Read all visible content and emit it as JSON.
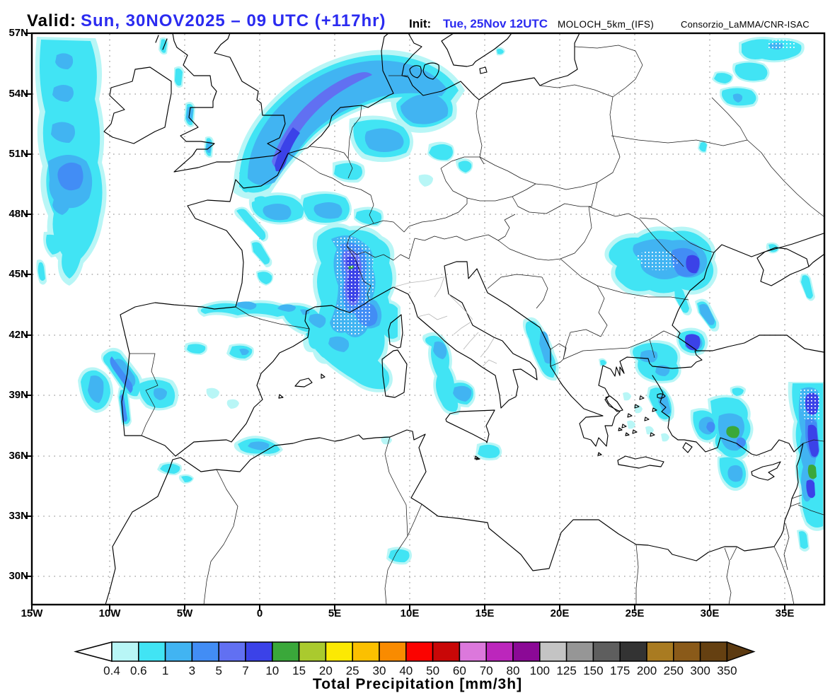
{
  "header": {
    "valid_label": "Valid:",
    "valid_value": "Sun, 30NOV2025 – 09 UTC (+117hr)",
    "init_label": "Init:",
    "init_value": "Tue, 25Nov 12UTC",
    "model": "MOLOCH_5km_(IFS)",
    "org": "Consorzio_LaMMA/CNR-ISAC",
    "accent_color": "#2b2bf0"
  },
  "map": {
    "lat_labels": [
      "57N",
      "54N",
      "51N",
      "48N",
      "45N",
      "42N",
      "39N",
      "36N",
      "33N",
      "30N"
    ],
    "lon_labels": [
      "15W",
      "10W",
      "5W",
      "0",
      "5E",
      "10E",
      "15E",
      "20E",
      "25E",
      "30E",
      "35E"
    ]
  },
  "colorbar": {
    "title": "Total Precipitation [mm/3h]",
    "boundary_labels": [
      "0.4",
      "0.6",
      "1",
      "3",
      "5",
      "7",
      "10",
      "15",
      "20",
      "25",
      "30",
      "40",
      "50",
      "60",
      "70",
      "80",
      "100",
      "125",
      "150",
      "175",
      "200",
      "250",
      "300",
      "350"
    ],
    "cell_colors": [
      "#b8f6f6",
      "#41e4f4",
      "#41b4f2",
      "#428df5",
      "#6170f2",
      "#3b42e8",
      "#3aa83a",
      "#aaca2e",
      "#fce903",
      "#fbc000",
      "#f98b00",
      "#fb0300",
      "#c90707",
      "#dc78dc",
      "#bc26bc",
      "#8b0996",
      "#c4c4c4",
      "#969696",
      "#5e5e5e",
      "#333333",
      "#a97b21",
      "#8a5a19",
      "#654011"
    ],
    "under_arrow_color": "#ffffff",
    "over_arrow_color": "#5c3a11"
  }
}
